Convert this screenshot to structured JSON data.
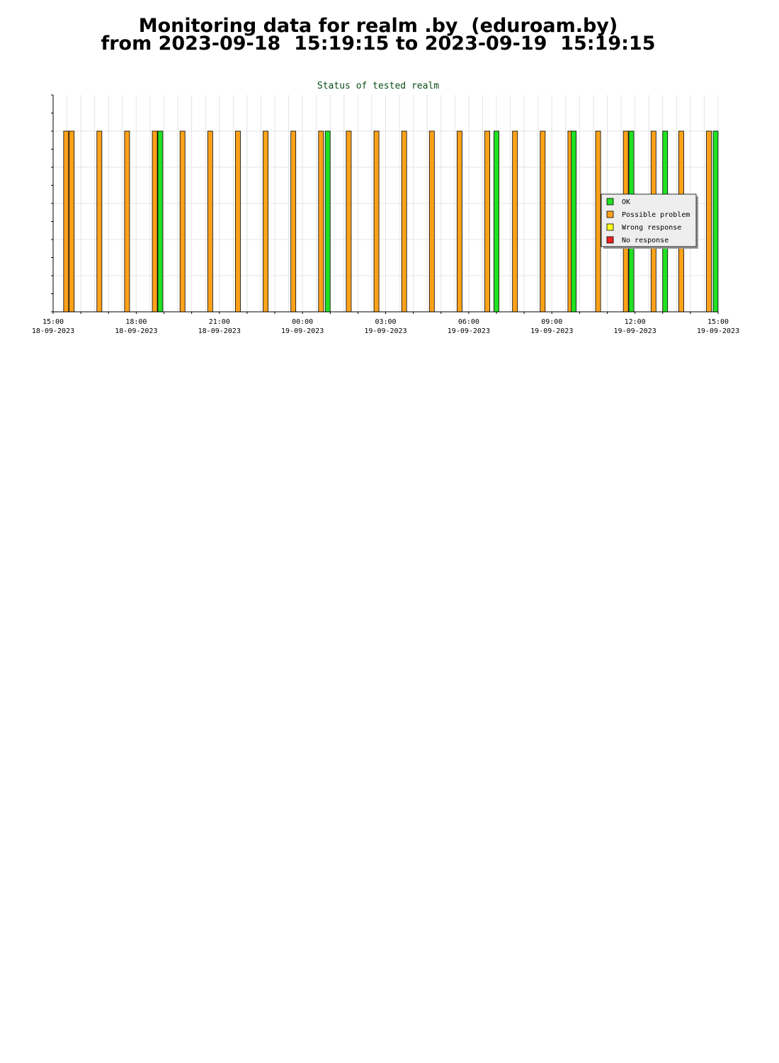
{
  "header": {
    "title_line1": "Monitoring data for realm .by  (eduroam.by)",
    "title_line2": "from 2023-09-18  15:19:15 to 2023-09-19  15:19:15"
  },
  "chart_data": {
    "type": "bar",
    "title": "Status of tested realm",
    "x_start_hour": 15,
    "x_end_hour": 39,
    "x_ticks": [
      {
        "hour": 15,
        "time": "15:00",
        "date": "18-09-2023"
      },
      {
        "hour": 18,
        "time": "18:00",
        "date": "18-09-2023"
      },
      {
        "hour": 21,
        "time": "21:00",
        "date": "18-09-2023"
      },
      {
        "hour": 24,
        "time": "00:00",
        "date": "19-09-2023"
      },
      {
        "hour": 27,
        "time": "03:00",
        "date": "19-09-2023"
      },
      {
        "hour": 30,
        "time": "06:00",
        "date": "19-09-2023"
      },
      {
        "hour": 33,
        "time": "09:00",
        "date": "19-09-2023"
      },
      {
        "hour": 36,
        "time": "12:00",
        "date": "19-09-2023"
      },
      {
        "hour": 39,
        "time": "15:00",
        "date": "19-09-2023"
      }
    ],
    "grid": true,
    "legend_position": "right",
    "legend": [
      {
        "key": "ok",
        "label": "OK",
        "color": "#22e022"
      },
      {
        "key": "possible",
        "label": "Possible problem",
        "color": "#ffa21a"
      },
      {
        "key": "wrong",
        "label": "Wrong response",
        "color": "#ffff22"
      },
      {
        "key": "none",
        "label": "No response",
        "color": "#ee2020"
      }
    ],
    "bars": [
      {
        "hour": 15.38,
        "status": "possible"
      },
      {
        "hour": 15.58,
        "status": "possible"
      },
      {
        "hour": 16.58,
        "status": "possible"
      },
      {
        "hour": 17.58,
        "status": "possible"
      },
      {
        "hour": 18.58,
        "status": "possible"
      },
      {
        "hour": 18.78,
        "status": "ok"
      },
      {
        "hour": 19.58,
        "status": "possible"
      },
      {
        "hour": 20.58,
        "status": "possible"
      },
      {
        "hour": 21.58,
        "status": "possible"
      },
      {
        "hour": 22.58,
        "status": "possible"
      },
      {
        "hour": 23.58,
        "status": "possible"
      },
      {
        "hour": 24.58,
        "status": "possible"
      },
      {
        "hour": 24.82,
        "status": "ok"
      },
      {
        "hour": 25.58,
        "status": "possible"
      },
      {
        "hour": 26.58,
        "status": "possible"
      },
      {
        "hour": 27.58,
        "status": "possible"
      },
      {
        "hour": 28.58,
        "status": "possible"
      },
      {
        "hour": 29.58,
        "status": "possible"
      },
      {
        "hour": 30.58,
        "status": "possible"
      },
      {
        "hour": 30.91,
        "status": "ok"
      },
      {
        "hour": 31.58,
        "status": "possible"
      },
      {
        "hour": 32.58,
        "status": "possible"
      },
      {
        "hour": 33.58,
        "status": "possible"
      },
      {
        "hour": 33.7,
        "status": "ok"
      },
      {
        "hour": 34.58,
        "status": "possible"
      },
      {
        "hour": 35.58,
        "status": "possible"
      },
      {
        "hour": 35.78,
        "status": "ok"
      },
      {
        "hour": 36.58,
        "status": "possible"
      },
      {
        "hour": 37.0,
        "status": "ok"
      },
      {
        "hour": 37.58,
        "status": "possible"
      },
      {
        "hour": 38.58,
        "status": "possible"
      },
      {
        "hour": 38.82,
        "status": "ok"
      }
    ]
  }
}
